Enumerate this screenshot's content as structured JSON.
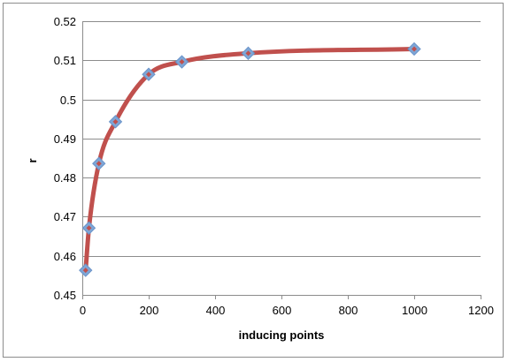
{
  "chart_data": {
    "type": "line",
    "title": "",
    "xlabel": "inducing points",
    "ylabel": "r",
    "xlim": [
      0,
      1200
    ],
    "ylim": [
      0.45,
      0.52
    ],
    "x_ticks": [
      0,
      200,
      400,
      600,
      800,
      1000,
      1200
    ],
    "x_tick_labels": [
      "0",
      "200",
      "400",
      "600",
      "800",
      "1000",
      "1200"
    ],
    "y_ticks": [
      0.45,
      0.46,
      0.47,
      0.48,
      0.49,
      0.5,
      0.51,
      0.52
    ],
    "y_tick_labels": [
      "0.45",
      "0.46",
      "0.47",
      "0.48",
      "0.49",
      "0.5",
      "0.51",
      "0.52"
    ],
    "grid": "horizontal",
    "legend": "none",
    "series": [
      {
        "x": [
          10,
          20,
          50,
          100,
          200,
          300,
          500,
          1000
        ],
        "values": [
          0.4563,
          0.4671,
          0.4836,
          0.4943,
          0.5064,
          0.5096,
          0.5118,
          0.5129
        ],
        "line_color": "#c0504d",
        "marker_color": "#7ea6d6",
        "marker": "diamond",
        "smoothed": true
      }
    ]
  }
}
